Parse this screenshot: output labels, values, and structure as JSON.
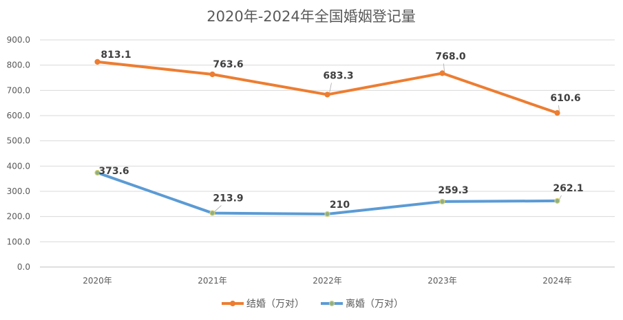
{
  "chart_data": {
    "type": "line",
    "title": "2020年-2024年全国婚姻登记量",
    "xlabel": "",
    "ylabel": "",
    "categories": [
      "2020年",
      "2021年",
      "2022年",
      "2023年",
      "2024年"
    ],
    "ylim": [
      0,
      900
    ],
    "yticks": [
      "0.0",
      "100.0",
      "200.0",
      "300.0",
      "400.0",
      "500.0",
      "600.0",
      "700.0",
      "800.0",
      "900.0"
    ],
    "grid": true,
    "legend_position": "bottom",
    "series": [
      {
        "name": "结婚（万对）",
        "color": "#ED7D31",
        "marker_fill": "#ED7D31",
        "values": [
          813.1,
          763.6,
          683.3,
          768.0,
          610.6
        ],
        "labels": [
          "813.1",
          "763.6",
          "683.3",
          "768.0",
          "610.6"
        ]
      },
      {
        "name": "离婚（万对）",
        "color": "#5B9BD5",
        "marker_fill": "#8FAF8A",
        "values": [
          373.6,
          213.9,
          210,
          259.3,
          262.1
        ],
        "labels": [
          "373.6",
          "213.9",
          "210",
          "259.3",
          "262.1"
        ]
      }
    ]
  }
}
